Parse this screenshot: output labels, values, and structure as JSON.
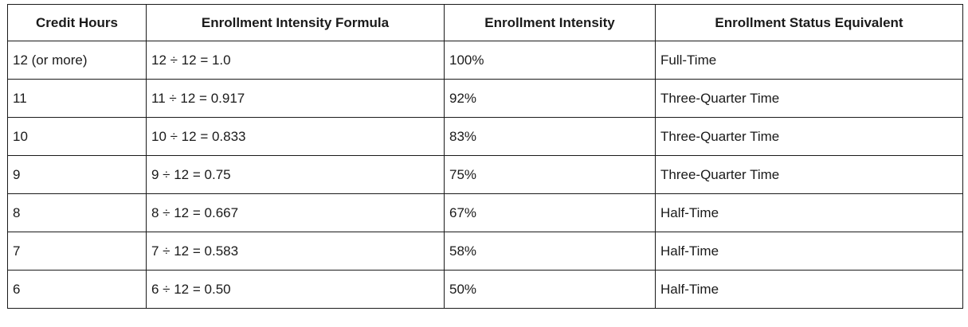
{
  "table": {
    "headers": [
      "Credit Hours",
      "Enrollment Intensity Formula",
      "Enrollment Intensity",
      "Enrollment Status Equivalent"
    ],
    "rows": [
      [
        "12 (or more)",
        "12 ÷ 12 = 1.0",
        "100%",
        "Full-Time"
      ],
      [
        "11",
        "11 ÷ 12 = 0.917",
        "92%",
        "Three-Quarter Time"
      ],
      [
        "10",
        "10 ÷ 12 = 0.833",
        "83%",
        "Three-Quarter Time"
      ],
      [
        "9",
        "9 ÷ 12 = 0.75",
        "75%",
        "Three-Quarter Time"
      ],
      [
        "8",
        "8 ÷ 12 = 0.667",
        "67%",
        "Half-Time"
      ],
      [
        "7",
        "7 ÷ 12 = 0.583",
        "58%",
        "Half-Time"
      ],
      [
        "6",
        "6 ÷ 12 = 0.50",
        "50%",
        "Half-Time"
      ]
    ]
  }
}
